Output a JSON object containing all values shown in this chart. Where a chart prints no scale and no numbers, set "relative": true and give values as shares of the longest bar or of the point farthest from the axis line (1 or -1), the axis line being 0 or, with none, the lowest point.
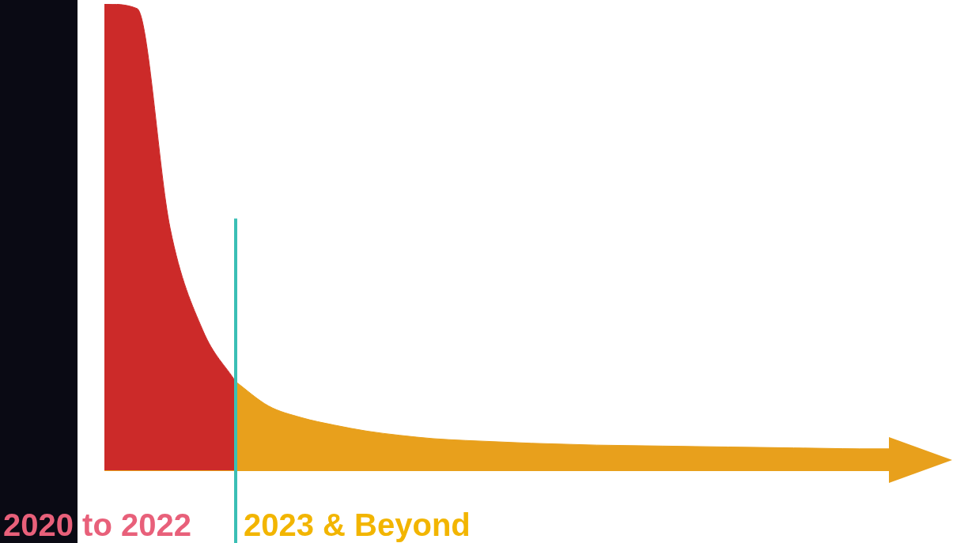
{
  "chart_data": {
    "type": "area",
    "relative": true,
    "categories": [
      null,
      null,
      null,
      null,
      null,
      null,
      null,
      null,
      null,
      null,
      null,
      null,
      null,
      null,
      null,
      null,
      null,
      null,
      null,
      null,
      null,
      null,
      null,
      null,
      null
    ],
    "series": [
      {
        "color": "#cc2a29",
        "values": [
          1.0,
          0.99,
          0.52,
          0.3,
          0.19,
          null,
          null,
          null,
          null,
          null,
          null,
          null,
          null,
          null,
          null,
          null,
          null,
          null,
          null,
          null,
          null,
          null,
          null,
          null,
          null
        ]
      },
      {
        "color": "#e8a01c",
        "values": [
          null,
          null,
          null,
          null,
          0.19,
          0.138,
          0.113,
          0.097,
          0.084,
          0.075,
          0.068,
          0.064,
          0.061,
          0.058,
          0.056,
          0.054,
          0.053,
          0.052,
          0.051,
          0.05,
          0.049,
          0.048,
          0.047,
          0.046,
          0.046
        ]
      }
    ],
    "annotations": [
      "2020 to 2022",
      "2023 & Beyond"
    ]
  }
}
